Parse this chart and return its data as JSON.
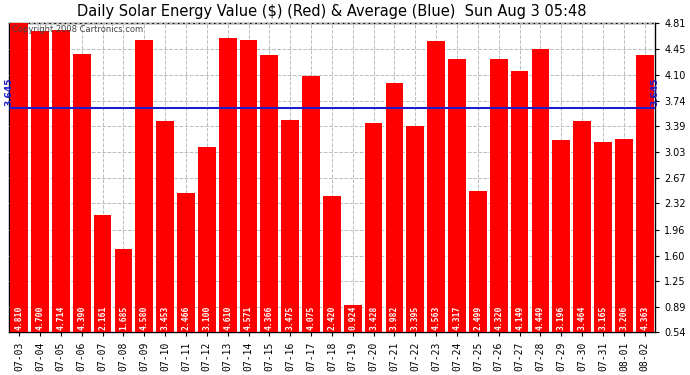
{
  "title": "Daily Solar Energy Value ($) (Red) & Average (Blue)  Sun Aug 3 05:48",
  "copyright": "Copyright 2008 Cartronics.com",
  "categories": [
    "07-03",
    "07-04",
    "07-05",
    "07-06",
    "07-07",
    "07-08",
    "07-09",
    "07-10",
    "07-11",
    "07-12",
    "07-13",
    "07-14",
    "07-15",
    "07-16",
    "07-17",
    "07-18",
    "07-19",
    "07-20",
    "07-21",
    "07-22",
    "07-23",
    "07-24",
    "07-25",
    "07-26",
    "07-27",
    "07-28",
    "07-29",
    "07-30",
    "07-31",
    "08-01",
    "08-02"
  ],
  "values": [
    4.81,
    4.7,
    4.714,
    4.39,
    2.161,
    1.685,
    4.58,
    3.453,
    2.466,
    3.1,
    4.61,
    4.571,
    4.366,
    3.475,
    4.075,
    2.42,
    0.924,
    3.428,
    3.982,
    3.395,
    4.563,
    4.317,
    2.499,
    4.32,
    4.149,
    4.449,
    3.196,
    3.464,
    3.165,
    3.206,
    4.363
  ],
  "average": 3.645,
  "bar_color": "#ff0000",
  "avg_line_color": "#1c1ccc",
  "background_color": "#ffffff",
  "plot_bg_color": "#ffffff",
  "grid_color": "#bbbbbb",
  "text_color": "#000000",
  "bar_label_color": "#ffffff",
  "yticks": [
    0.54,
    0.89,
    1.25,
    1.6,
    1.96,
    2.32,
    2.67,
    3.03,
    3.39,
    3.74,
    4.1,
    4.45,
    4.81
  ],
  "ymin": 0.54,
  "ymax": 4.81,
  "avg_label": "3.645",
  "title_fontsize": 10.5,
  "tick_fontsize": 7,
  "bar_label_fontsize": 5.8,
  "copyright_fontsize": 6
}
